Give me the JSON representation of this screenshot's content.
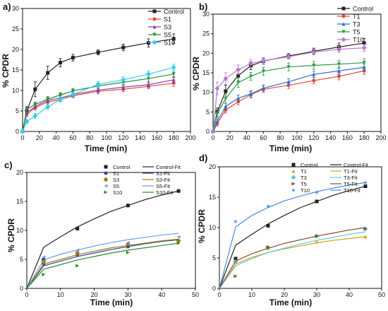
{
  "figure": {
    "title": ""
  },
  "chart_data": [
    {
      "panel_label": "a)",
      "type": "line",
      "xlabel": "Time (min)",
      "ylabel": "% CPDR",
      "xlim": [
        0,
        200
      ],
      "ylim": [
        0,
        30
      ],
      "xticks": [
        0,
        20,
        40,
        60,
        80,
        100,
        120,
        140,
        160,
        180,
        200
      ],
      "yticks": [
        0,
        5,
        10,
        15,
        20,
        25,
        30
      ],
      "legend": "top-right",
      "x": [
        0,
        5,
        15,
        30,
        45,
        60,
        90,
        120,
        150,
        180
      ],
      "series": [
        {
          "name": "Control",
          "color": "#222222",
          "marker": "square",
          "values": [
            0,
            5,
            10.3,
            14.3,
            16.8,
            18,
            19.3,
            20.5,
            21.6,
            22.6
          ],
          "err": [
            0,
            1.0,
            1.8,
            1.6,
            1.0,
            0.8,
            0.6,
            0.8,
            1.0,
            1.2
          ]
        },
        {
          "name": "S1",
          "color": "#e8493a",
          "marker": "circle",
          "values": [
            0,
            4.2,
            5.8,
            7.2,
            7.8,
            8.7,
            9.8,
            10.3,
            11,
            11.8
          ],
          "err": [
            0,
            0.6,
            0.6,
            0.5,
            0.5,
            0.5,
            0.6,
            0.6,
            0.6,
            0.8
          ]
        },
        {
          "name": "S3",
          "color": "#8a3fb5",
          "marker": "triangle-up",
          "values": [
            0,
            4.6,
            6.1,
            7.6,
            8.2,
            9,
            10.1,
            10.8,
            11.4,
            12.6
          ],
          "err": [
            0,
            0.6,
            0.6,
            0.5,
            0.5,
            0.5,
            0.6,
            0.6,
            0.6,
            0.8
          ]
        },
        {
          "name": "S5",
          "color": "#2a8a3a",
          "marker": "triangle-down",
          "values": [
            0,
            5.4,
            6.6,
            7.9,
            8.9,
            9.9,
            11.1,
            12,
            12.9,
            14
          ],
          "err": [
            0,
            0.7,
            0.6,
            0.6,
            0.6,
            0.6,
            0.7,
            0.7,
            0.8,
            0.8
          ]
        },
        {
          "name": "S10",
          "color": "#30d0e8",
          "marker": "diamond",
          "values": [
            0,
            2.4,
            3.8,
            6,
            7.8,
            9,
            11.5,
            12.6,
            14,
            15.6
          ],
          "err": [
            0,
            0.5,
            0.6,
            0.6,
            0.6,
            0.6,
            0.7,
            0.8,
            0.8,
            0.8
          ]
        }
      ]
    },
    {
      "panel_label": "b)",
      "type": "line",
      "xlabel": "Time (min)",
      "ylabel": "% CPDR",
      "xlim": [
        0,
        200
      ],
      "ylim": [
        0,
        30
      ],
      "xticks": [
        0,
        20,
        40,
        60,
        80,
        100,
        120,
        140,
        160,
        180,
        200
      ],
      "yticks": [
        0,
        5,
        10,
        15,
        20,
        25,
        30
      ],
      "legend": "top-right",
      "x": [
        0,
        5,
        15,
        30,
        45,
        60,
        90,
        120,
        150,
        180
      ],
      "series": [
        {
          "name": "Control",
          "color": "#222222",
          "marker": "square",
          "values": [
            0,
            5,
            10.3,
            14.3,
            16.8,
            18,
            19.3,
            20.5,
            21.6,
            22.6
          ],
          "err": [
            0,
            1.0,
            1.5,
            1.4,
            1.0,
            0.8,
            0.6,
            0.8,
            1.0,
            1.2
          ]
        },
        {
          "name": "T1",
          "color": "#e8493a",
          "marker": "circle",
          "values": [
            0,
            2,
            5.5,
            7.6,
            9.4,
            10.8,
            11.8,
            13,
            14.1,
            15.5
          ],
          "err": [
            0,
            0.6,
            0.8,
            0.8,
            0.8,
            0.8,
            0.8,
            0.8,
            0.9,
            0.9
          ]
        },
        {
          "name": "T3",
          "color": "#2f6fd0",
          "marker": "triangle-up",
          "values": [
            0,
            2.6,
            6.4,
            8.5,
            9.6,
            11.1,
            12.7,
            14.6,
            15.5,
            16.4
          ],
          "err": [
            0,
            0.6,
            0.8,
            0.8,
            0.8,
            0.8,
            0.8,
            0.8,
            0.9,
            0.9
          ]
        },
        {
          "name": "T5",
          "color": "#2a9a4a",
          "marker": "triangle-down",
          "values": [
            0,
            4.6,
            8.4,
            12.5,
            14.1,
            15.4,
            16.5,
            16.9,
            17.2,
            17.6
          ],
          "err": [
            0,
            1.0,
            1.2,
            1.2,
            1.0,
            1.0,
            1.0,
            1.0,
            1.0,
            1.0
          ]
        },
        {
          "name": "T10",
          "color": "#b57bd0",
          "marker": "diamond",
          "values": [
            0,
            11,
            13.5,
            15.8,
            17.4,
            18.1,
            19.1,
            20.3,
            21,
            21.4
          ],
          "err": [
            0,
            1.6,
            1.5,
            1.2,
            1.0,
            0.8,
            0.6,
            0.7,
            0.8,
            0.9
          ]
        }
      ]
    },
    {
      "panel_label": "c)",
      "type": "scatter",
      "xlabel": "Time (min)",
      "ylabel": "% CPDR",
      "xlim": [
        0,
        50
      ],
      "ylim": [
        0,
        20
      ],
      "xticks": [
        0,
        10,
        20,
        30,
        40,
        50
      ],
      "yticks": [
        0,
        5,
        10,
        15,
        20
      ],
      "legend": "top-right",
      "x": [
        5,
        15,
        30,
        45
      ],
      "fit_x": [
        0,
        5,
        10,
        15,
        20,
        25,
        30,
        35,
        40,
        45
      ],
      "series": [
        {
          "name": "Control",
          "fit_name": "Control-Fit",
          "color": "#222222",
          "marker": "square",
          "values": [
            4.9,
            10.3,
            14.3,
            16.8
          ],
          "fit": [
            0,
            7.1,
            8.9,
            10.6,
            12,
            13.3,
            14.3,
            15.3,
            16.1,
            16.8
          ]
        },
        {
          "name": "S1",
          "fit_name": "S1-Fit",
          "color": "#2f3fa0",
          "marker": "circle",
          "values": [
            4.2,
            5.8,
            7.2,
            8.2
          ],
          "fit": [
            0,
            3.9,
            4.7,
            5.5,
            6.1,
            6.7,
            7.2,
            7.7,
            8.1,
            8.4
          ]
        },
        {
          "name": "S3",
          "fit_name": "S3-Fit",
          "color": "#a07a10",
          "marker": "diamond",
          "values": [
            4.6,
            6.1,
            7.6,
            8.2
          ],
          "fit": [
            0,
            4.2,
            5.0,
            5.8,
            6.4,
            7.0,
            7.4,
            7.8,
            8.2,
            8.5
          ]
        },
        {
          "name": "S5",
          "fit_name": "S5-Fit",
          "color": "#6aa0e8",
          "marker": "triangle-left",
          "values": [
            5.4,
            6.6,
            7.9,
            8.9
          ],
          "fit": [
            0,
            4.9,
            5.9,
            6.6,
            7.3,
            7.9,
            8.4,
            8.8,
            9.2,
            9.5
          ]
        },
        {
          "name": "S10",
          "fit_name": "S10-Fit",
          "color": "#2a8a2a",
          "marker": "triangle-right",
          "values": [
            2.4,
            3.9,
            6.2,
            7.8
          ],
          "fit": [
            0,
            3.3,
            4.1,
            4.9,
            5.5,
            6.1,
            6.6,
            7.0,
            7.4,
            7.8
          ]
        }
      ]
    },
    {
      "panel_label": "d)",
      "type": "scatter",
      "xlabel": "Time (min)",
      "ylabel": "% CPDR",
      "xlim": [
        0,
        50
      ],
      "ylim": [
        0,
        20
      ],
      "xticks": [
        0,
        10,
        20,
        30,
        40,
        50
      ],
      "yticks": [
        0,
        5,
        10,
        15,
        20
      ],
      "legend": "top-right",
      "x": [
        5,
        15,
        30,
        45
      ],
      "fit_x": [
        0,
        5,
        10,
        15,
        20,
        25,
        30,
        35,
        40,
        45
      ],
      "series": [
        {
          "name": "Control",
          "fit_name": "Control-Fit",
          "color": "#222222",
          "marker": "square",
          "values": [
            4.9,
            10.3,
            14.3,
            16.8
          ],
          "fit": [
            0,
            7.1,
            8.9,
            10.6,
            12,
            13.3,
            14.3,
            15.3,
            16.1,
            16.8
          ]
        },
        {
          "name": "T1",
          "fit_name": "T1-Fit",
          "color": "#d8a010",
          "marker": "triangle-up",
          "values": [
            4.5,
            6.6,
            7.7,
            8.5
          ],
          "fit": [
            0,
            4.0,
            5.1,
            5.9,
            6.5,
            7.0,
            7.5,
            7.9,
            8.2,
            8.5
          ]
        },
        {
          "name": "T3",
          "fit_name": "T3-Fit",
          "color": "#60c8e0",
          "marker": "diamond",
          "values": [
            4.4,
            6.7,
            8.6,
            9.8
          ],
          "fit": [
            0,
            3.7,
            4.9,
            5.9,
            6.6,
            7.3,
            7.9,
            8.4,
            8.9,
            9.3
          ]
        },
        {
          "name": "T5",
          "fit_name": "T5-Fit",
          "color": "#8a4a20",
          "marker": "triangle-right",
          "values": [
            2,
            6.8,
            8.6,
            9.8
          ],
          "fit": [
            0,
            4.5,
            5.7,
            6.6,
            7.4,
            8.0,
            8.6,
            9.1,
            9.6,
            10.0
          ]
        },
        {
          "name": "T10",
          "fit_name": "T10-Fit",
          "color": "#4a8ae0",
          "marker": "star",
          "values": [
            11,
            13.5,
            15.8,
            17.4
          ],
          "fit": [
            0,
            10.1,
            12.0,
            13.3,
            14.4,
            15.2,
            15.9,
            16.5,
            17.0,
            17.4
          ]
        }
      ]
    }
  ]
}
